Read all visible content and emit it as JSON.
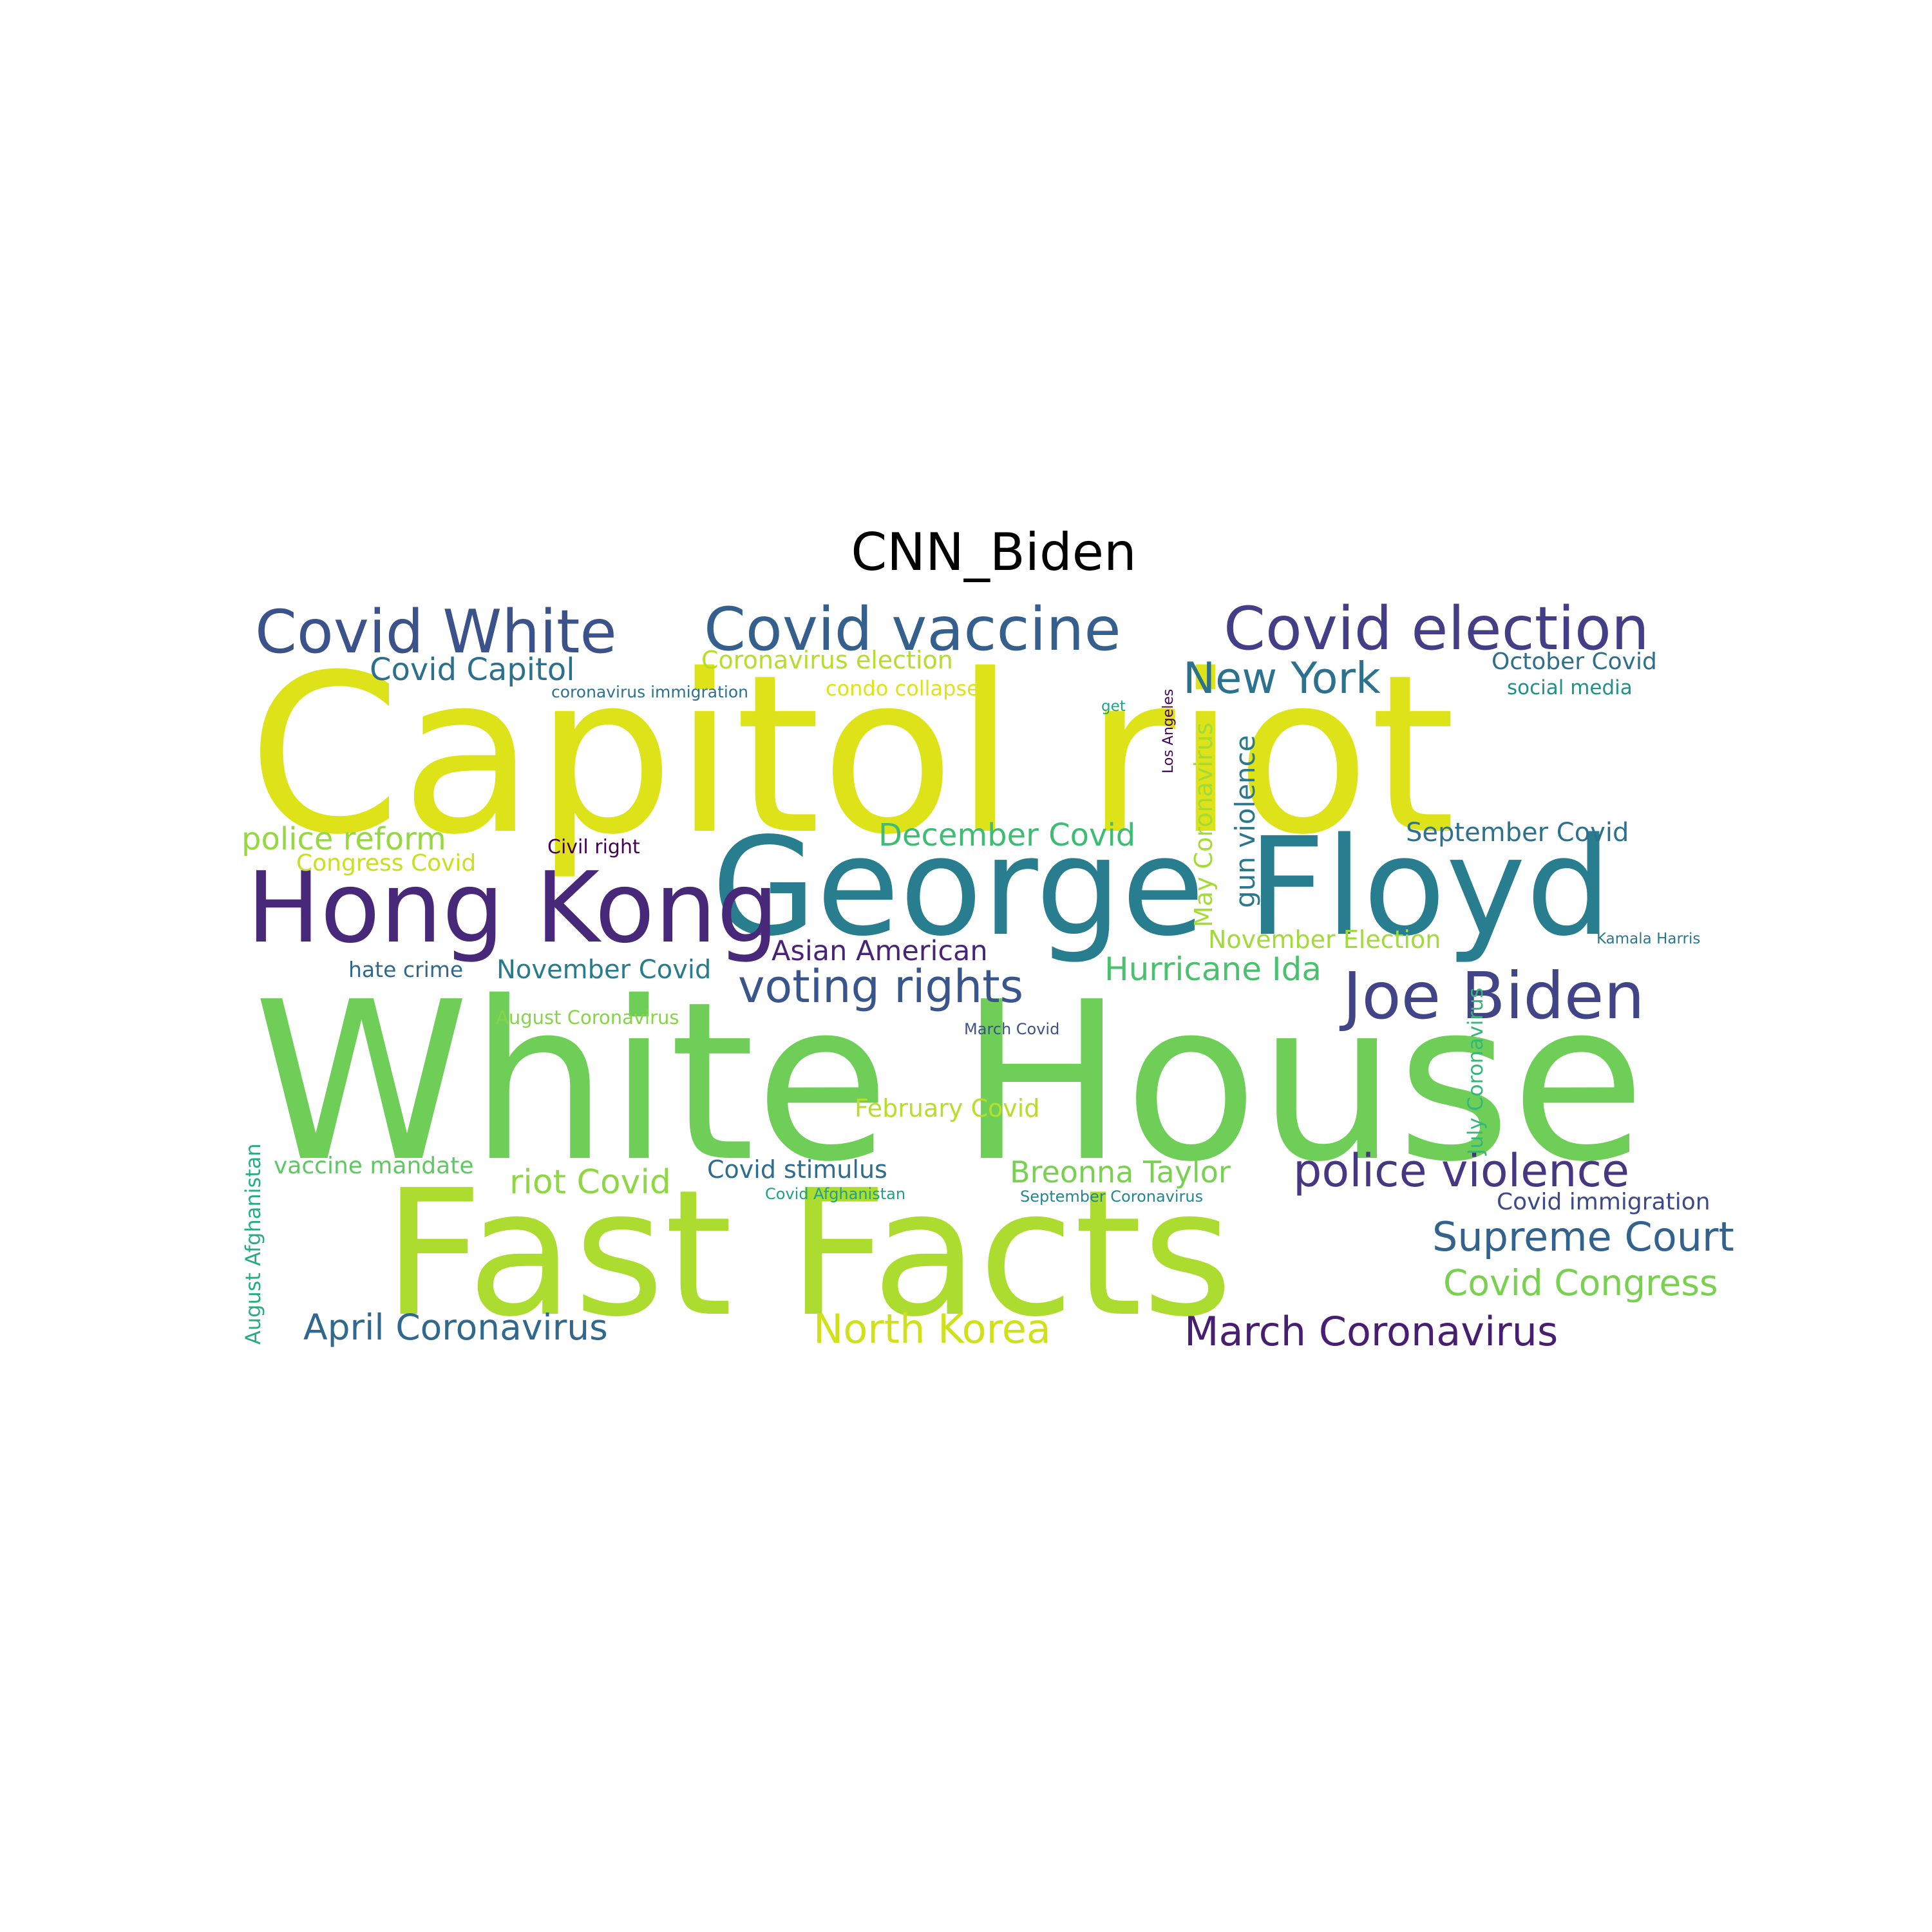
{
  "chart_data": {
    "type": "wordcloud",
    "title": "CNN_Biden",
    "colormap": "viridis",
    "background": "#ffffff",
    "words": [
      {
        "text": "Capitol riot",
        "weight": 1.0,
        "color": "#dde318",
        "orientation": "horizontal"
      },
      {
        "text": "White House",
        "weight": 1.0,
        "color": "#6ece58",
        "orientation": "horizontal"
      },
      {
        "text": "Fast Facts",
        "weight": 0.8,
        "color": "#addc30",
        "orientation": "horizontal"
      },
      {
        "text": "George Floyd",
        "weight": 0.62,
        "color": "#287d8e",
        "orientation": "horizontal"
      },
      {
        "text": "Hong Kong",
        "weight": 0.45,
        "color": "#482878",
        "orientation": "horizontal"
      },
      {
        "text": "Covid White",
        "weight": 0.33,
        "color": "#3b528b",
        "orientation": "horizontal"
      },
      {
        "text": "Covid vaccine",
        "weight": 0.33,
        "color": "#355f8d",
        "orientation": "horizontal"
      },
      {
        "text": "Covid election",
        "weight": 0.33,
        "color": "#433e85",
        "orientation": "horizontal"
      },
      {
        "text": "Joe Biden",
        "weight": 0.33,
        "color": "#414487",
        "orientation": "horizontal"
      },
      {
        "text": "voting rights",
        "weight": 0.25,
        "color": "#39568c",
        "orientation": "horizontal"
      },
      {
        "text": "police violence",
        "weight": 0.25,
        "color": "#453781",
        "orientation": "horizontal"
      },
      {
        "text": "New York",
        "weight": 0.24,
        "color": "#2c728e",
        "orientation": "horizontal"
      },
      {
        "text": "Supreme Court",
        "weight": 0.22,
        "color": "#33638d",
        "orientation": "horizontal"
      },
      {
        "text": "March Coronavirus",
        "weight": 0.22,
        "color": "#481f70",
        "orientation": "horizontal"
      },
      {
        "text": "North Korea",
        "weight": 0.22,
        "color": "#d0e11c",
        "orientation": "horizontal"
      },
      {
        "text": "April Coronavirus",
        "weight": 0.2,
        "color": "#31688e",
        "orientation": "horizontal"
      },
      {
        "text": "Covid Congress",
        "weight": 0.2,
        "color": "#7ad151",
        "orientation": "horizontal"
      },
      {
        "text": "riot Covid",
        "weight": 0.2,
        "color": "#8fd744",
        "orientation": "horizontal"
      },
      {
        "text": "Hurricane Ida",
        "weight": 0.2,
        "color": "#4ac16d",
        "orientation": "horizontal"
      },
      {
        "text": "Breonna Taylor",
        "weight": 0.18,
        "color": "#7ad151",
        "orientation": "horizontal"
      },
      {
        "text": "Covid Capitol",
        "weight": 0.18,
        "color": "#2d708e",
        "orientation": "horizontal"
      },
      {
        "text": "December Covid",
        "weight": 0.18,
        "color": "#3fbc73",
        "orientation": "horizontal"
      },
      {
        "text": "police reform",
        "weight": 0.18,
        "color": "#95d840",
        "orientation": "horizontal"
      },
      {
        "text": "Asian American",
        "weight": 0.17,
        "color": "#482475",
        "orientation": "horizontal"
      },
      {
        "text": "gun violence",
        "weight": 0.17,
        "color": "#2a788e",
        "orientation": "vertical"
      },
      {
        "text": "November Covid",
        "weight": 0.16,
        "color": "#297b8e",
        "orientation": "horizontal"
      },
      {
        "text": "Covid stimulus",
        "weight": 0.15,
        "color": "#2f6c8e",
        "orientation": "horizontal"
      },
      {
        "text": "February Covid",
        "weight": 0.15,
        "color": "#b8de29",
        "orientation": "horizontal"
      },
      {
        "text": "September Covid",
        "weight": 0.15,
        "color": "#2d718e",
        "orientation": "horizontal"
      },
      {
        "text": "November Election",
        "weight": 0.15,
        "color": "#a2da37",
        "orientation": "horizontal"
      },
      {
        "text": "May Coronavirus",
        "weight": 0.15,
        "color": "#a5db36",
        "orientation": "vertical"
      },
      {
        "text": "Coronavirus election",
        "weight": 0.15,
        "color": "#b5de2b",
        "orientation": "horizontal"
      },
      {
        "text": "vaccine mandate",
        "weight": 0.14,
        "color": "#5ec962",
        "orientation": "horizontal"
      },
      {
        "text": "Covid immigration",
        "weight": 0.14,
        "color": "#3e4989",
        "orientation": "horizontal"
      },
      {
        "text": "October Covid",
        "weight": 0.14,
        "color": "#2e6e8e",
        "orientation": "horizontal"
      },
      {
        "text": "Congress Covid",
        "weight": 0.14,
        "color": "#c8e020",
        "orientation": "horizontal"
      },
      {
        "text": "hate crime",
        "weight": 0.13,
        "color": "#31688e",
        "orientation": "horizontal"
      },
      {
        "text": "July Coronavirus",
        "weight": 0.13,
        "color": "#35b779",
        "orientation": "vertical"
      },
      {
        "text": "August Afghanistan",
        "weight": 0.13,
        "color": "#26ad81",
        "orientation": "vertical"
      },
      {
        "text": "condo collapse",
        "weight": 0.12,
        "color": "#dde318",
        "orientation": "horizontal"
      },
      {
        "text": "social media",
        "weight": 0.12,
        "color": "#21918c",
        "orientation": "horizontal"
      },
      {
        "text": "Civil right",
        "weight": 0.12,
        "color": "#440154",
        "orientation": "horizontal"
      },
      {
        "text": "August Coronavirus",
        "weight": 0.11,
        "color": "#86d549",
        "orientation": "horizontal"
      },
      {
        "text": "Covid Afghanistan",
        "weight": 0.1,
        "color": "#1fa088",
        "orientation": "horizontal"
      },
      {
        "text": "September Coronavirus",
        "weight": 0.1,
        "color": "#24878e",
        "orientation": "horizontal"
      },
      {
        "text": "coronavirus immigration",
        "weight": 0.1,
        "color": "#2c728e",
        "orientation": "horizontal"
      },
      {
        "text": "March Covid",
        "weight": 0.09,
        "color": "#3b528b",
        "orientation": "horizontal"
      },
      {
        "text": "Kamala Harris",
        "weight": 0.09,
        "color": "#2a788e",
        "orientation": "horizontal"
      },
      {
        "text": "get",
        "weight": 0.09,
        "color": "#20a486",
        "orientation": "horizontal"
      },
      {
        "text": "Los Angeles",
        "weight": 0.08,
        "color": "#450559",
        "orientation": "vertical"
      }
    ]
  }
}
